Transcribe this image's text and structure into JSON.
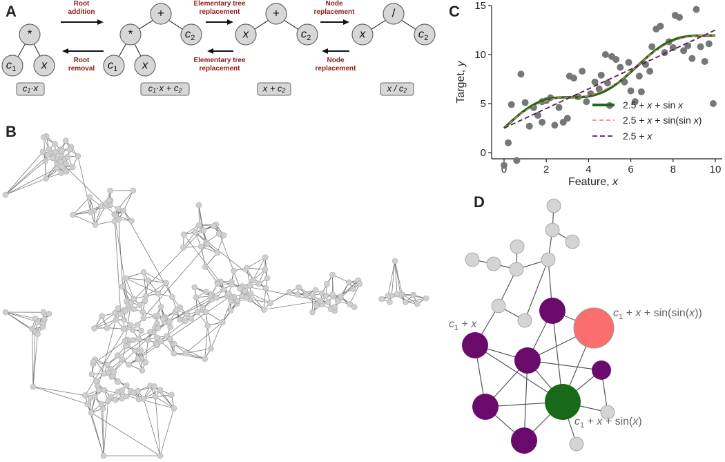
{
  "panels": {
    "a": "A",
    "b": "B",
    "c": "C",
    "d": "D"
  },
  "colors": {
    "green": "#1a6b1a",
    "salmon": "#f4706b",
    "purple": "#4f1a5c",
    "node_purple": "#6a0a6a",
    "node_green": "#186a18",
    "node_salmon": "#fa6e6e",
    "node_gray": "#d4d4d4",
    "scatter": "#777777",
    "label_red": "#8b1a1a"
  },
  "panel_a": {
    "arrows": {
      "root_addition": [
        "Root",
        "addition"
      ],
      "root_removal": [
        "Root",
        "removal"
      ],
      "etr_forward": [
        "Elementary tree",
        "replacement"
      ],
      "etr_back": [
        "Elementary tree",
        "replacement"
      ],
      "nr_forward": [
        "Node",
        "replacement"
      ],
      "nr_back": [
        "Node",
        "replacement"
      ]
    },
    "trees": [
      {
        "root": "*",
        "left": "c1",
        "right": "x",
        "expr": "c1·x"
      },
      {
        "root": "+",
        "mid": "*",
        "left": "c1",
        "right": "x",
        "c2": "c2",
        "expr": "c1·x + c2"
      },
      {
        "root": "+",
        "left": "x",
        "right": "c2",
        "expr": "x + c2"
      },
      {
        "root": "/",
        "left": "x",
        "right": "c2",
        "expr": "x / c2"
      }
    ]
  },
  "chart_data": {
    "type": "scatter",
    "xlabel": "Feature, x",
    "ylabel": "Target, y",
    "xlim": [
      -0.5,
      10.3
    ],
    "ylim": [
      -1.5,
      15
    ],
    "xticks": [
      0,
      2,
      4,
      6,
      8,
      10
    ],
    "yticks": [
      0,
      5,
      10,
      15
    ],
    "legend_position": "center-right",
    "points": [
      [
        0.0,
        -1.3
      ],
      [
        0.2,
        1.0
      ],
      [
        0.35,
        4.9
      ],
      [
        0.6,
        -0.8
      ],
      [
        0.8,
        8.0
      ],
      [
        1.0,
        5.1
      ],
      [
        1.2,
        2.7
      ],
      [
        1.4,
        4.6
      ],
      [
        1.6,
        3.8
      ],
      [
        1.8,
        5.2
      ],
      [
        1.8,
        3.1
      ],
      [
        2.0,
        5.3
      ],
      [
        2.2,
        5.6
      ],
      [
        2.4,
        2.8
      ],
      [
        2.6,
        4.6
      ],
      [
        2.8,
        3.1
      ],
      [
        3.0,
        3.5
      ],
      [
        3.1,
        7.8
      ],
      [
        3.3,
        7.6
      ],
      [
        3.5,
        5.7
      ],
      [
        3.7,
        8.3
      ],
      [
        3.9,
        5.2
      ],
      [
        4.1,
        6.0
      ],
      [
        4.3,
        7.2
      ],
      [
        4.5,
        6.5
      ],
      [
        4.6,
        7.9
      ],
      [
        4.8,
        10.0
      ],
      [
        4.9,
        7.1
      ],
      [
        5.0,
        4.8
      ],
      [
        5.1,
        9.8
      ],
      [
        5.3,
        9.5
      ],
      [
        5.5,
        8.7
      ],
      [
        5.7,
        7.2
      ],
      [
        5.9,
        9.2
      ],
      [
        6.0,
        6.3
      ],
      [
        6.2,
        5.2
      ],
      [
        6.4,
        7.8
      ],
      [
        6.5,
        6.2
      ],
      [
        6.7,
        9.0
      ],
      [
        6.9,
        8.3
      ],
      [
        7.0,
        10.8
      ],
      [
        7.2,
        12.6
      ],
      [
        7.4,
        12.9
      ],
      [
        7.6,
        10.2
      ],
      [
        7.8,
        11.3
      ],
      [
        8.0,
        10.7
      ],
      [
        8.1,
        14.0
      ],
      [
        8.3,
        13.8
      ],
      [
        8.5,
        10.4
      ],
      [
        8.7,
        10.9
      ],
      [
        8.9,
        9.6
      ],
      [
        9.1,
        14.6
      ],
      [
        9.3,
        10.8
      ],
      [
        9.5,
        9.3
      ],
      [
        9.7,
        11.1
      ],
      [
        9.9,
        5.0
      ]
    ],
    "series": [
      {
        "name": "2.5 + x + sin x",
        "style": "solid",
        "color": "#1a6b1a"
      },
      {
        "name": "2.5 + x + sin(sin x)",
        "style": "dashed",
        "color": "#f4706b"
      },
      {
        "name": "2.5 + x",
        "style": "dashed",
        "color": "#4f1a5c"
      }
    ]
  },
  "panel_d": {
    "label_c1x": "c1 + x",
    "label_sinsin": "c1 + x + sin(sin(x))",
    "label_sin": "c1 + x + sin(x)"
  }
}
